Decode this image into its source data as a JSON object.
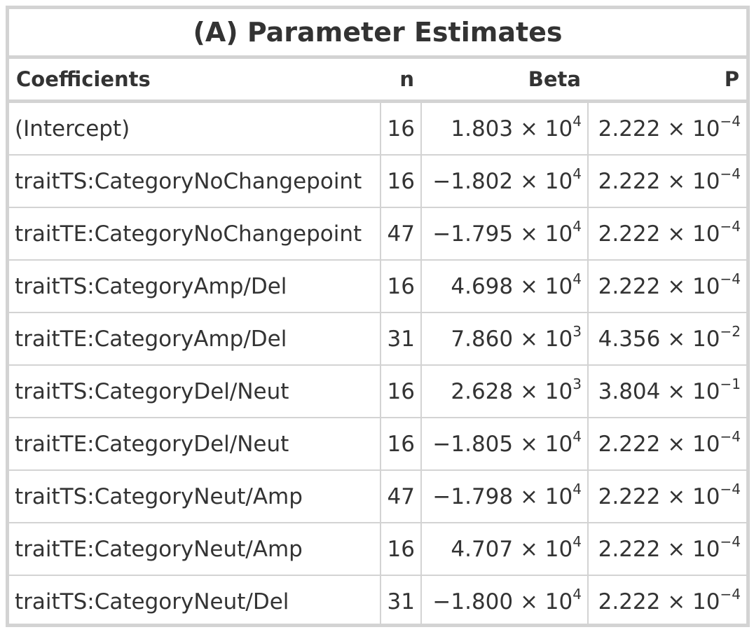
{
  "chart_data": {
    "type": "table",
    "title": "(A) Parameter Estimates",
    "columns": [
      "Coefficients",
      "n",
      "Beta",
      "P"
    ],
    "rows": [
      {
        "coef": "(Intercept)",
        "n": "16",
        "beta": {
          "sign": "",
          "mant": "1.803",
          "exp": "4"
        },
        "p": {
          "mant": "2.222",
          "exp": "−4"
        }
      },
      {
        "coef": "traitTS:CategoryNoChangepoint",
        "n": "16",
        "beta": {
          "sign": "−",
          "mant": "1.802",
          "exp": "4"
        },
        "p": {
          "mant": "2.222",
          "exp": "−4"
        }
      },
      {
        "coef": "traitTE:CategoryNoChangepoint",
        "n": "47",
        "beta": {
          "sign": "−",
          "mant": "1.795",
          "exp": "4"
        },
        "p": {
          "mant": "2.222",
          "exp": "−4"
        }
      },
      {
        "coef": "traitTS:CategoryAmp/Del",
        "n": "16",
        "beta": {
          "sign": "",
          "mant": "4.698",
          "exp": "4"
        },
        "p": {
          "mant": "2.222",
          "exp": "−4"
        }
      },
      {
        "coef": "traitTE:CategoryAmp/Del",
        "n": "31",
        "beta": {
          "sign": "",
          "mant": "7.860",
          "exp": "3"
        },
        "p": {
          "mant": "4.356",
          "exp": "−2"
        }
      },
      {
        "coef": "traitTS:CategoryDel/Neut",
        "n": "16",
        "beta": {
          "sign": "",
          "mant": "2.628",
          "exp": "3"
        },
        "p": {
          "mant": "3.804",
          "exp": "−1"
        }
      },
      {
        "coef": "traitTE:CategoryDel/Neut",
        "n": "16",
        "beta": {
          "sign": "−",
          "mant": "1.805",
          "exp": "4"
        },
        "p": {
          "mant": "2.222",
          "exp": "−4"
        }
      },
      {
        "coef": "traitTS:CategoryNeut/Amp",
        "n": "47",
        "beta": {
          "sign": "−",
          "mant": "1.798",
          "exp": "4"
        },
        "p": {
          "mant": "2.222",
          "exp": "−4"
        }
      },
      {
        "coef": "traitTE:CategoryNeut/Amp",
        "n": "16",
        "beta": {
          "sign": "",
          "mant": "4.707",
          "exp": "4"
        },
        "p": {
          "mant": "2.222",
          "exp": "−4"
        }
      },
      {
        "coef": "traitTS:CategoryNeut/Del",
        "n": "31",
        "beta": {
          "sign": "−",
          "mant": "1.800",
          "exp": "4"
        },
        "p": {
          "mant": "2.222",
          "exp": "−4"
        }
      }
    ]
  },
  "sci": {
    "times": " × 10"
  },
  "colors": {
    "text": "#333333",
    "border": "#d3d3d3"
  }
}
